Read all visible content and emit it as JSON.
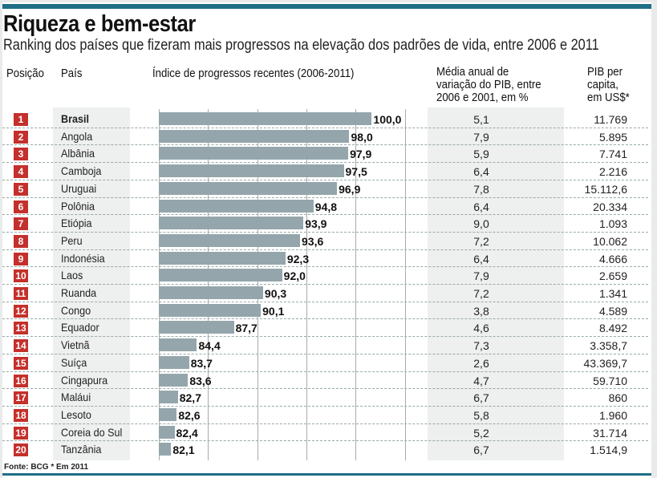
{
  "title": "Riqueza e bem-estar",
  "subtitle": "Ranking dos países que fizeram mais progressos na elevação dos padrões de vida, entre 2006 e 2011",
  "headers": {
    "position": "Posição",
    "country": "País",
    "index": "Índice de progressos recentes (2006-2011)",
    "gdp_growth": [
      "Média anual de",
      "variação do PIB, entre",
      "2006 e 2001, em %"
    ],
    "gdp_per_capita": [
      "PIB per",
      "capita,",
      "em US$*"
    ]
  },
  "footer": "Fonte: BCG * Em 2011",
  "colors": {
    "accent": "#1f6f86",
    "badge": "#c4302b",
    "bar": "#94a6ab"
  },
  "chart_data": {
    "type": "bar",
    "orientation": "horizontal",
    "title": "Índice de progressos recentes (2006-2011)",
    "xlim": [
      81,
      101
    ],
    "grid": true,
    "categories": [
      "Brasil",
      "Angola",
      "Albânia",
      "Camboja",
      "Uruguai",
      "Polônia",
      "Etiópia",
      "Peru",
      "Indonésia",
      "Laos",
      "Ruanda",
      "Congo",
      "Equador",
      "Vietnã",
      "Suíça",
      "Cingapura",
      "Maláui",
      "Lesoto",
      "Coreia do Sul",
      "Tanzânia"
    ],
    "values": [
      100.0,
      98.0,
      97.9,
      97.5,
      96.9,
      94.8,
      93.9,
      93.6,
      92.3,
      92.0,
      90.3,
      90.1,
      87.7,
      84.4,
      83.7,
      83.6,
      82.7,
      82.6,
      82.4,
      82.1
    ],
    "labels": [
      "100,0",
      "98,0",
      "97,9",
      "97,5",
      "96,9",
      "94,8",
      "93,9",
      "93,6",
      "92,3",
      "92,0",
      "90,3",
      "90,1",
      "87,7",
      "84,4",
      "83,7",
      "83,6",
      "82,7",
      "82,6",
      "82,4",
      "82,1"
    ],
    "gdp_growth": [
      "5,1",
      "7,9",
      "5,9",
      "6,4",
      "7,8",
      "6,4",
      "9,0",
      "7,2",
      "6,4",
      "7,9",
      "7,2",
      "3,8",
      "4,6",
      "7,3",
      "2,6",
      "4,7",
      "6,7",
      "5,8",
      "5,2",
      "6,7"
    ],
    "gdp_per_capita": [
      "11.769",
      "5.895",
      "7.741",
      "2.216",
      "15.112,6",
      "20.334",
      "1.093",
      "10.062",
      "4.666",
      "2.659",
      "1.341",
      "4.589",
      "8.492",
      "3.358,7",
      "43.369,7",
      "59.710",
      "860",
      "1.960",
      "31.714",
      "1.514,9"
    ]
  }
}
